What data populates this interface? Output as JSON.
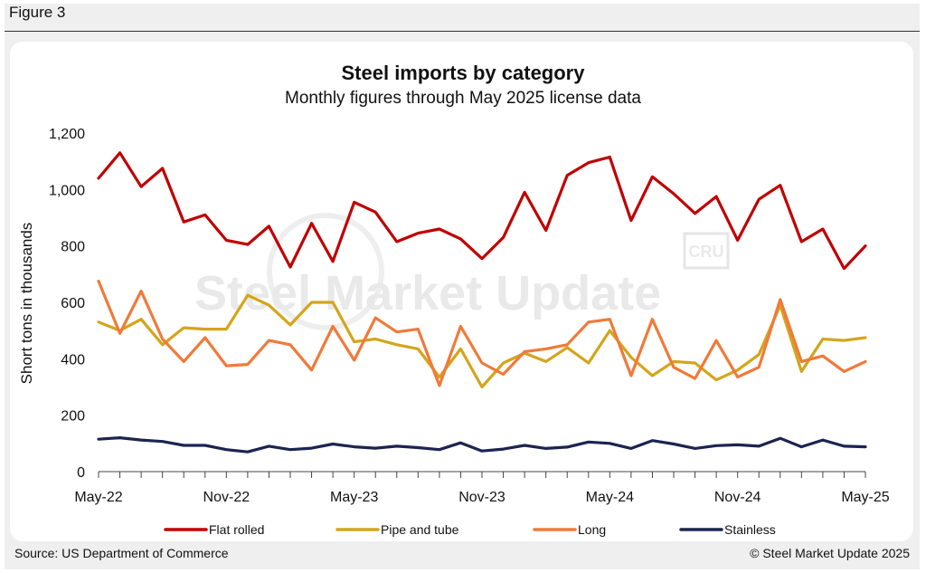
{
  "figure_label": "Figure 3",
  "source": "Source: US Department of Commerce",
  "copyright": "© Steel Market Update 2025",
  "watermark": {
    "brand": "Steel Market Update",
    "logo": "CRU"
  },
  "colors": {
    "Flat rolled": "#c00000",
    "Pipe and tube": "#d4a51c",
    "Long": "#f07a3a",
    "Stainless": "#1c2450"
  },
  "chart_data": {
    "type": "line",
    "title": "Steel imports by category",
    "subtitle": "Monthly figures through May 2025 license data",
    "xlabel": "",
    "ylabel": "Short tons in thousands",
    "ylim": [
      0,
      1200
    ],
    "yticks": [
      0,
      200,
      400,
      600,
      800,
      1000,
      1200
    ],
    "ytick_labels": [
      "0",
      "200",
      "400",
      "600",
      "800",
      "1,000",
      "1,200"
    ],
    "categories": [
      "May-22",
      "Jun-22",
      "Jul-22",
      "Aug-22",
      "Sep-22",
      "Oct-22",
      "Nov-22",
      "Dec-22",
      "Jan-23",
      "Feb-23",
      "Mar-23",
      "Apr-23",
      "May-23",
      "Jun-23",
      "Jul-23",
      "Aug-23",
      "Sep-23",
      "Oct-23",
      "Nov-23",
      "Dec-23",
      "Jan-24",
      "Feb-24",
      "Mar-24",
      "Apr-24",
      "May-24",
      "Jun-24",
      "Jul-24",
      "Aug-24",
      "Sep-24",
      "Oct-24",
      "Nov-24",
      "Dec-24",
      "Jan-25",
      "Feb-25",
      "Mar-25",
      "Apr-25",
      "May-25"
    ],
    "xtick_labels": [
      "May-22",
      "Nov-22",
      "May-23",
      "Nov-23",
      "May-24",
      "Nov-24",
      "May-25"
    ],
    "xtick_index": [
      0,
      6,
      12,
      18,
      24,
      30,
      36
    ],
    "legend_position": "bottom",
    "series": [
      {
        "name": "Flat rolled",
        "values": [
          1040,
          1130,
          1010,
          1075,
          885,
          910,
          820,
          805,
          870,
          725,
          880,
          745,
          955,
          920,
          815,
          845,
          860,
          825,
          755,
          830,
          990,
          855,
          1050,
          1095,
          1115,
          890,
          1045,
          985,
          915,
          975,
          820,
          965,
          1015,
          815,
          860,
          720,
          800
        ]
      },
      {
        "name": "Pipe and tube",
        "values": [
          530,
          500,
          540,
          450,
          510,
          505,
          505,
          625,
          590,
          520,
          600,
          600,
          460,
          470,
          450,
          435,
          335,
          435,
          300,
          385,
          420,
          390,
          440,
          385,
          500,
          405,
          340,
          390,
          385,
          325,
          360,
          415,
          590,
          355,
          470,
          465,
          475
        ]
      },
      {
        "name": "Long",
        "values": [
          675,
          490,
          640,
          470,
          390,
          475,
          375,
          380,
          465,
          450,
          360,
          515,
          395,
          545,
          495,
          505,
          305,
          515,
          385,
          345,
          425,
          435,
          450,
          530,
          540,
          340,
          540,
          370,
          330,
          465,
          335,
          370,
          610,
          390,
          410,
          355,
          390
        ]
      },
      {
        "name": "Stainless",
        "values": [
          115,
          120,
          112,
          107,
          93,
          93,
          78,
          70,
          90,
          78,
          83,
          98,
          88,
          83,
          90,
          85,
          78,
          102,
          73,
          80,
          93,
          82,
          87,
          105,
          100,
          82,
          110,
          98,
          82,
          92,
          95,
          90,
          118,
          88,
          112,
          90,
          88
        ]
      }
    ]
  }
}
